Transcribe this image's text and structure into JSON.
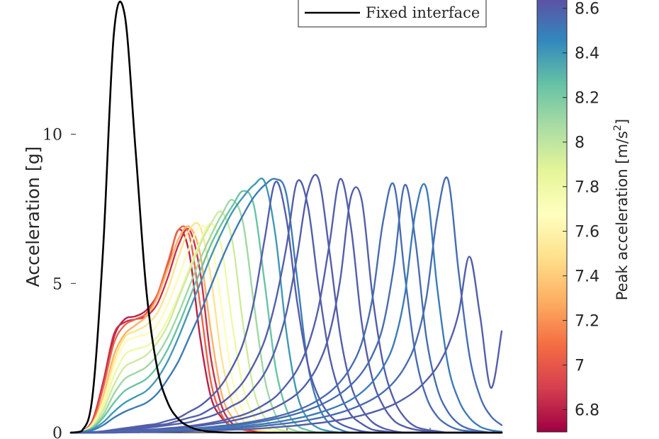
{
  "chart_data": {
    "type": "line",
    "ylabel": "Acceleration [g]",
    "xlabel": "",
    "ylim": [
      0,
      14.5
    ],
    "y_ticks": [
      0,
      5,
      10
    ],
    "grid": false,
    "legend": {
      "entries": [
        "Fixed interface"
      ],
      "position": "top-right"
    },
    "colorbar": {
      "label": "Peak acceleration [m/s²]",
      "label_base": "Peak acceleration [m/s",
      "label_sup": "2",
      "label_end": "]",
      "range": [
        6.7,
        8.65
      ],
      "ticks": [
        6.8,
        7,
        7.2,
        7.4,
        7.6,
        7.8,
        8,
        8.2,
        8.4,
        8.6
      ],
      "colormap": [
        "#9e0142",
        "#d53e4f",
        "#f46d43",
        "#fdae61",
        "#fee08b",
        "#ffffbf",
        "#e6f598",
        "#abdda4",
        "#66c2a5",
        "#3288bd",
        "#5e4fa2"
      ]
    },
    "x": [
      0,
      0.025,
      0.05,
      0.075,
      0.1,
      0.125,
      0.15,
      0.175,
      0.2,
      0.225,
      0.25,
      0.275,
      0.3,
      0.325,
      0.35,
      0.375,
      0.4,
      0.425,
      0.45,
      0.475,
      0.5,
      0.525,
      0.55,
      0.575,
      0.6,
      0.625,
      0.65,
      0.675,
      0.7,
      0.725,
      0.75,
      0.775,
      0.8,
      0.825,
      0.85,
      0.875,
      0.9,
      0.925,
      0.95,
      0.975,
      1.0
    ],
    "series": [
      {
        "name": "Fixed interface",
        "color": "#000000",
        "values": [
          0,
          0.05,
          1.2,
          6.2,
          13.4,
          14.0,
          9.5,
          4.8,
          2.2,
          1.0,
          0.45,
          0.2,
          0.08,
          0.03,
          0.01,
          0,
          0,
          0,
          0,
          0,
          0,
          0,
          0,
          0,
          0,
          0,
          0,
          0,
          0,
          0,
          0,
          0,
          0,
          0,
          0,
          0,
          0,
          0,
          0,
          0,
          0
        ]
      },
      {
        "color_value": 6.8,
        "values": [
          0,
          0.05,
          0.4,
          1.6,
          3.2,
          3.8,
          3.9,
          4.1,
          4.6,
          5.6,
          6.8,
          6.0,
          3.2,
          1.2,
          0.5,
          0.2,
          0.1,
          0.05,
          0,
          0,
          0,
          0,
          0,
          0,
          0,
          0,
          0,
          0,
          0,
          0,
          0,
          0,
          0,
          0,
          0,
          0,
          0,
          0,
          0,
          0,
          0
        ]
      },
      {
        "color_value": 6.85,
        "values": [
          0,
          0.05,
          0.4,
          1.7,
          3.3,
          3.7,
          3.8,
          3.9,
          4.3,
          5.2,
          6.3,
          6.8,
          5.4,
          2.5,
          0.9,
          0.3,
          0.1,
          0.05,
          0,
          0,
          0,
          0,
          0,
          0,
          0,
          0,
          0,
          0,
          0,
          0,
          0,
          0,
          0,
          0,
          0,
          0,
          0,
          0,
          0,
          0,
          0
        ]
      },
      {
        "color_value": 7.05,
        "values": [
          0,
          0.05,
          0.35,
          1.5,
          3.0,
          3.6,
          3.8,
          4.0,
          4.6,
          5.7,
          6.8,
          6.6,
          4.3,
          1.7,
          0.6,
          0.2,
          0.1,
          0,
          0,
          0,
          0,
          0,
          0,
          0,
          0,
          0,
          0,
          0,
          0,
          0,
          0,
          0,
          0,
          0,
          0,
          0,
          0,
          0,
          0,
          0,
          0
        ]
      },
      {
        "color_value": 7.3,
        "values": [
          0,
          0.05,
          0.3,
          1.2,
          2.6,
          3.3,
          3.6,
          3.9,
          4.5,
          5.5,
          6.5,
          6.9,
          6.0,
          3.4,
          1.3,
          0.5,
          0.2,
          0.1,
          0,
          0,
          0,
          0,
          0,
          0,
          0,
          0,
          0,
          0,
          0,
          0,
          0,
          0,
          0,
          0,
          0,
          0,
          0,
          0,
          0,
          0,
          0
        ]
      },
      {
        "color_value": 7.5,
        "values": [
          0,
          0.04,
          0.3,
          1.1,
          2.4,
          3.2,
          3.4,
          3.6,
          4.0,
          4.8,
          5.9,
          6.8,
          6.9,
          5.2,
          2.5,
          1.0,
          0.4,
          0.15,
          0.05,
          0,
          0,
          0,
          0,
          0,
          0,
          0,
          0,
          0,
          0,
          0,
          0,
          0,
          0,
          0,
          0,
          0,
          0,
          0,
          0,
          0,
          0
        ]
      },
      {
        "color_value": 7.65,
        "values": [
          0,
          0.04,
          0.25,
          1.0,
          2.2,
          3.0,
          3.2,
          3.3,
          3.6,
          4.3,
          5.2,
          6.2,
          6.9,
          6.5,
          4.2,
          1.8,
          0.7,
          0.25,
          0.1,
          0,
          0,
          0,
          0,
          0,
          0,
          0,
          0,
          0,
          0,
          0,
          0,
          0,
          0,
          0,
          0,
          0,
          0,
          0,
          0,
          0,
          0
        ]
      },
      {
        "color_value": 7.8,
        "values": [
          0,
          0.04,
          0.22,
          0.9,
          1.9,
          2.6,
          2.8,
          2.9,
          3.2,
          3.8,
          4.6,
          5.5,
          6.4,
          7.0,
          6.2,
          3.6,
          1.5,
          0.55,
          0.2,
          0.05,
          0,
          0,
          0,
          0,
          0,
          0,
          0,
          0,
          0,
          0,
          0,
          0,
          0,
          0,
          0,
          0,
          0,
          0,
          0,
          0,
          0
        ]
      },
      {
        "color_value": 7.95,
        "values": [
          0,
          0.03,
          0.2,
          0.75,
          1.6,
          2.2,
          2.4,
          2.6,
          3.0,
          3.6,
          4.5,
          5.4,
          6.3,
          7.0,
          7.4,
          6.4,
          3.6,
          1.4,
          0.5,
          0.15,
          0.05,
          0,
          0,
          0,
          0,
          0,
          0,
          0,
          0,
          0,
          0,
          0,
          0,
          0,
          0,
          0,
          0,
          0,
          0,
          0,
          0
        ]
      },
      {
        "color_value": 8.1,
        "values": [
          0,
          0.03,
          0.18,
          0.6,
          1.3,
          1.8,
          2.0,
          2.2,
          2.6,
          3.2,
          4.0,
          4.9,
          5.8,
          6.6,
          7.3,
          7.8,
          7.0,
          4.3,
          1.8,
          0.6,
          0.2,
          0.05,
          0,
          0,
          0,
          0,
          0,
          0,
          0,
          0,
          0,
          0,
          0,
          0,
          0,
          0,
          0,
          0,
          0,
          0,
          0
        ]
      },
      {
        "color_value": 8.25,
        "values": [
          0,
          0.03,
          0.15,
          0.5,
          1.0,
          1.4,
          1.6,
          1.8,
          2.2,
          2.8,
          3.6,
          4.5,
          5.4,
          6.3,
          7.0,
          7.6,
          8.1,
          7.6,
          5.0,
          2.2,
          0.8,
          0.25,
          0.08,
          0,
          0,
          0,
          0,
          0,
          0,
          0,
          0,
          0,
          0,
          0,
          0,
          0,
          0,
          0,
          0,
          0,
          0
        ]
      },
      {
        "color_value": 8.4,
        "values": [
          0,
          0.02,
          0.12,
          0.35,
          0.7,
          1.0,
          1.2,
          1.4,
          1.8,
          2.4,
          3.2,
          4.1,
          5.0,
          5.9,
          6.7,
          7.4,
          7.9,
          8.3,
          8.4,
          6.6,
          3.4,
          1.3,
          0.45,
          0.15,
          0.05,
          0,
          0,
          0,
          0,
          0,
          0,
          0,
          0,
          0,
          0,
          0,
          0,
          0,
          0,
          0,
          0
        ]
      },
      {
        "color_value": 8.5,
        "values": [
          0,
          0.02,
          0.08,
          0.25,
          0.5,
          0.7,
          0.85,
          1.0,
          1.3,
          1.8,
          2.4,
          3.2,
          4.0,
          4.9,
          5.8,
          6.6,
          7.3,
          7.9,
          8.3,
          8.5,
          8.0,
          5.2,
          2.3,
          0.9,
          0.3,
          0.1,
          0,
          0,
          0,
          0,
          0,
          0,
          0,
          0,
          0,
          0,
          0,
          0,
          0,
          0,
          0
        ]
      },
      {
        "color_value": 8.6,
        "values": [
          0,
          0,
          0.02,
          0.05,
          0.1,
          0.15,
          0.2,
          0.25,
          0.3,
          0.4,
          0.5,
          0.7,
          0.9,
          1.2,
          1.6,
          2.2,
          3.0,
          4.4,
          6.5,
          8.4,
          7.2,
          4.4,
          2.3,
          1.2,
          0.6,
          0.3,
          0.15,
          0.05,
          0,
          0,
          0,
          0,
          0,
          0,
          0,
          0,
          0,
          0,
          0,
          0,
          0
        ]
      },
      {
        "color_value": 8.6,
        "values": [
          0,
          0,
          0.02,
          0.04,
          0.08,
          0.12,
          0.16,
          0.2,
          0.25,
          0.3,
          0.4,
          0.5,
          0.6,
          0.8,
          1.0,
          1.3,
          1.7,
          2.3,
          3.1,
          4.4,
          6.2,
          8.4,
          7.6,
          4.9,
          2.6,
          1.3,
          0.6,
          0.3,
          0.1,
          0.05,
          0,
          0,
          0,
          0,
          0,
          0,
          0,
          0,
          0,
          0,
          0
        ]
      },
      {
        "color_value": 8.6,
        "values": [
          0,
          0,
          0.01,
          0.03,
          0.06,
          0.1,
          0.13,
          0.16,
          0.2,
          0.25,
          0.3,
          0.35,
          0.45,
          0.55,
          0.7,
          0.9,
          1.1,
          1.5,
          2.0,
          2.8,
          4.0,
          5.9,
          8.1,
          8.5,
          6.1,
          3.3,
          1.6,
          0.8,
          0.35,
          0.15,
          0.05,
          0,
          0,
          0,
          0,
          0,
          0,
          0,
          0,
          0,
          0
        ]
      },
      {
        "color_value": 8.6,
        "values": [
          0,
          0,
          0.01,
          0.02,
          0.04,
          0.06,
          0.08,
          0.1,
          0.12,
          0.15,
          0.18,
          0.22,
          0.27,
          0.33,
          0.4,
          0.5,
          0.6,
          0.75,
          0.95,
          1.2,
          1.6,
          2.1,
          2.9,
          4.2,
          6.3,
          8.5,
          6.9,
          3.7,
          1.8,
          0.9,
          0.4,
          0.2,
          0.1,
          0.05,
          0,
          0,
          0,
          0,
          0,
          0,
          0
        ]
      },
      {
        "color_value": 8.6,
        "values": [
          0,
          0,
          0.01,
          0.02,
          0.03,
          0.05,
          0.07,
          0.09,
          0.11,
          0.13,
          0.16,
          0.19,
          0.23,
          0.28,
          0.33,
          0.4,
          0.48,
          0.58,
          0.7,
          0.85,
          1.05,
          1.3,
          1.7,
          2.3,
          3.3,
          5.1,
          7.9,
          7.8,
          4.6,
          2.3,
          1.1,
          0.5,
          0.2,
          0.1,
          0.05,
          0,
          0,
          0,
          0,
          0,
          0
        ]
      },
      {
        "color_value": 8.55,
        "values": [
          0,
          0,
          0,
          0.01,
          0.02,
          0.03,
          0.04,
          0.05,
          0.07,
          0.09,
          0.11,
          0.13,
          0.16,
          0.19,
          0.23,
          0.27,
          0.32,
          0.38,
          0.45,
          0.53,
          0.63,
          0.75,
          0.9,
          1.1,
          1.35,
          1.7,
          2.2,
          3.0,
          4.5,
          7.1,
          8.3,
          5.3,
          2.6,
          1.2,
          0.55,
          0.25,
          0.1,
          0.05,
          0,
          0,
          0
        ]
      },
      {
        "color_value": 8.55,
        "values": [
          0,
          0,
          0,
          0.01,
          0.02,
          0.03,
          0.04,
          0.05,
          0.06,
          0.08,
          0.1,
          0.12,
          0.14,
          0.17,
          0.2,
          0.24,
          0.28,
          0.33,
          0.39,
          0.46,
          0.54,
          0.64,
          0.76,
          0.9,
          1.08,
          1.3,
          1.6,
          2.0,
          2.6,
          3.6,
          5.6,
          8.3,
          6.4,
          3.2,
          1.5,
          0.7,
          0.3,
          0.12,
          0.05,
          0,
          0
        ]
      },
      {
        "color_value": 8.5,
        "values": [
          0,
          0,
          0,
          0.01,
          0.01,
          0.02,
          0.03,
          0.04,
          0.05,
          0.06,
          0.08,
          0.1,
          0.12,
          0.14,
          0.16,
          0.19,
          0.22,
          0.26,
          0.3,
          0.35,
          0.41,
          0.48,
          0.56,
          0.66,
          0.78,
          0.92,
          1.1,
          1.35,
          1.7,
          2.2,
          3.0,
          4.6,
          7.4,
          8.2,
          4.9,
          2.3,
          1.1,
          0.5,
          0.2,
          0.08,
          0.03
        ]
      },
      {
        "color_value": 8.55,
        "values": [
          0,
          0,
          0,
          0,
          0.01,
          0.01,
          0.02,
          0.03,
          0.04,
          0.05,
          0.06,
          0.07,
          0.09,
          0.1,
          0.12,
          0.14,
          0.17,
          0.2,
          0.23,
          0.27,
          0.31,
          0.36,
          0.42,
          0.49,
          0.57,
          0.67,
          0.79,
          0.94,
          1.12,
          1.36,
          1.7,
          2.2,
          3.0,
          4.5,
          7.2,
          8.5,
          5.4,
          2.6,
          1.2,
          0.55,
          0.25
        ]
      },
      {
        "color_value": 8.6,
        "values": [
          0,
          0,
          0,
          0,
          0,
          0.01,
          0.01,
          0.02,
          0.02,
          0.03,
          0.04,
          0.05,
          0.06,
          0.07,
          0.08,
          0.1,
          0.11,
          0.13,
          0.15,
          0.18,
          0.21,
          0.24,
          0.28,
          0.32,
          0.37,
          0.43,
          0.5,
          0.58,
          0.68,
          0.8,
          0.95,
          1.15,
          1.4,
          1.75,
          2.2,
          2.9,
          4.0,
          5.9,
          3.9,
          1.5,
          3.4
        ]
      }
    ]
  }
}
